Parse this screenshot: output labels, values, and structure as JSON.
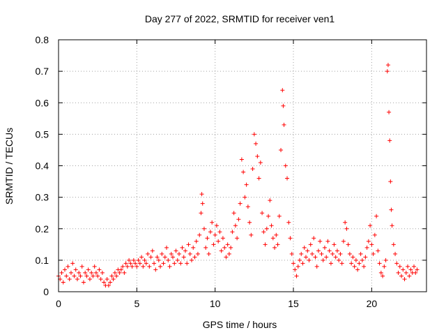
{
  "chart_data": {
    "type": "scatter",
    "title": "Day 277 of 2022, SRMTID for receiver ven1",
    "xlabel": "GPS time / hours",
    "ylabel": "SRMTID / TECUs",
    "xlim": [
      0,
      23.5
    ],
    "ylim": [
      0,
      0.8
    ],
    "xticks": [
      0,
      5,
      10,
      15,
      20
    ],
    "yticks": [
      0,
      0.1,
      0.2,
      0.3,
      0.4,
      0.5,
      0.6,
      0.7,
      0.8
    ],
    "xtick_labels": [
      "0",
      "5",
      "10",
      "15",
      "20"
    ],
    "ytick_labels": [
      "0",
      "0.1",
      "0.2",
      "0.3",
      "0.4",
      "0.5",
      "0.6",
      "0.7",
      "0.8"
    ],
    "grid": true,
    "marker": "+",
    "series": [
      {
        "name": "ven1",
        "color": "#ff0000",
        "points": [
          [
            0.0,
            0.05
          ],
          [
            0.1,
            0.04
          ],
          [
            0.2,
            0.06
          ],
          [
            0.3,
            0.03
          ],
          [
            0.4,
            0.07
          ],
          [
            0.5,
            0.05
          ],
          [
            0.6,
            0.08
          ],
          [
            0.7,
            0.04
          ],
          [
            0.8,
            0.06
          ],
          [
            0.9,
            0.09
          ],
          [
            1.0,
            0.05
          ],
          [
            1.1,
            0.07
          ],
          [
            1.2,
            0.04
          ],
          [
            1.3,
            0.06
          ],
          [
            1.4,
            0.05
          ],
          [
            1.5,
            0.08
          ],
          [
            1.6,
            0.03
          ],
          [
            1.7,
            0.06
          ],
          [
            1.8,
            0.05
          ],
          [
            1.9,
            0.07
          ],
          [
            2.0,
            0.04
          ],
          [
            2.1,
            0.06
          ],
          [
            2.2,
            0.05
          ],
          [
            2.3,
            0.08
          ],
          [
            2.4,
            0.06
          ],
          [
            2.5,
            0.05
          ],
          [
            2.6,
            0.07
          ],
          [
            2.7,
            0.04
          ],
          [
            2.8,
            0.06
          ],
          [
            2.9,
            0.03
          ],
          [
            3.0,
            0.02
          ],
          [
            3.1,
            0.04
          ],
          [
            3.2,
            0.02
          ],
          [
            3.3,
            0.03
          ],
          [
            3.4,
            0.05
          ],
          [
            3.5,
            0.04
          ],
          [
            3.6,
            0.06
          ],
          [
            3.7,
            0.05
          ],
          [
            3.8,
            0.07
          ],
          [
            3.9,
            0.06
          ],
          [
            4.0,
            0.07
          ],
          [
            4.1,
            0.08
          ],
          [
            4.2,
            0.06
          ],
          [
            4.3,
            0.09
          ],
          [
            4.4,
            0.08
          ],
          [
            4.5,
            0.1
          ],
          [
            4.6,
            0.09
          ],
          [
            4.7,
            0.08
          ],
          [
            4.8,
            0.1
          ],
          [
            4.9,
            0.09
          ],
          [
            5.0,
            0.08
          ],
          [
            5.1,
            0.1
          ],
          [
            5.2,
            0.09
          ],
          [
            5.3,
            0.11
          ],
          [
            5.4,
            0.08
          ],
          [
            5.5,
            0.1
          ],
          [
            5.6,
            0.09
          ],
          [
            5.7,
            0.12
          ],
          [
            5.8,
            0.08
          ],
          [
            5.9,
            0.11
          ],
          [
            6.0,
            0.13
          ],
          [
            6.1,
            0.09
          ],
          [
            6.2,
            0.07
          ],
          [
            6.3,
            0.11
          ],
          [
            6.4,
            0.1
          ],
          [
            6.5,
            0.08
          ],
          [
            6.6,
            0.12
          ],
          [
            6.7,
            0.09
          ],
          [
            6.8,
            0.11
          ],
          [
            6.9,
            0.14
          ],
          [
            7.0,
            0.1
          ],
          [
            7.1,
            0.08
          ],
          [
            7.2,
            0.12
          ],
          [
            7.3,
            0.11
          ],
          [
            7.4,
            0.09
          ],
          [
            7.5,
            0.13
          ],
          [
            7.6,
            0.1
          ],
          [
            7.7,
            0.12
          ],
          [
            7.8,
            0.09
          ],
          [
            7.9,
            0.14
          ],
          [
            8.0,
            0.11
          ],
          [
            8.1,
            0.13
          ],
          [
            8.2,
            0.09
          ],
          [
            8.3,
            0.15
          ],
          [
            8.4,
            0.12
          ],
          [
            8.5,
            0.1
          ],
          [
            8.6,
            0.14
          ],
          [
            8.7,
            0.11
          ],
          [
            8.8,
            0.16
          ],
          [
            8.9,
            0.12
          ],
          [
            9.0,
            0.18
          ],
          [
            9.1,
            0.25
          ],
          [
            9.15,
            0.31
          ],
          [
            9.2,
            0.28
          ],
          [
            9.3,
            0.2
          ],
          [
            9.4,
            0.14
          ],
          [
            9.5,
            0.17
          ],
          [
            9.6,
            0.12
          ],
          [
            9.7,
            0.19
          ],
          [
            9.8,
            0.22
          ],
          [
            9.9,
            0.15
          ],
          [
            10.0,
            0.18
          ],
          [
            10.1,
            0.21
          ],
          [
            10.2,
            0.16
          ],
          [
            10.3,
            0.19
          ],
          [
            10.4,
            0.13
          ],
          [
            10.5,
            0.17
          ],
          [
            10.6,
            0.14
          ],
          [
            10.7,
            0.11
          ],
          [
            10.8,
            0.15
          ],
          [
            10.9,
            0.12
          ],
          [
            11.0,
            0.14
          ],
          [
            11.1,
            0.19
          ],
          [
            11.2,
            0.25
          ],
          [
            11.3,
            0.21
          ],
          [
            11.4,
            0.17
          ],
          [
            11.5,
            0.23
          ],
          [
            11.6,
            0.28
          ],
          [
            11.7,
            0.42
          ],
          [
            11.8,
            0.38
          ],
          [
            11.9,
            0.3
          ],
          [
            12.0,
            0.34
          ],
          [
            12.1,
            0.27
          ],
          [
            12.2,
            0.22
          ],
          [
            12.3,
            0.18
          ],
          [
            12.4,
            0.39
          ],
          [
            12.5,
            0.5
          ],
          [
            12.6,
            0.47
          ],
          [
            12.7,
            0.43
          ],
          [
            12.8,
            0.36
          ],
          [
            12.9,
            0.41
          ],
          [
            13.0,
            0.25
          ],
          [
            13.1,
            0.19
          ],
          [
            13.2,
            0.15
          ],
          [
            13.3,
            0.2
          ],
          [
            13.4,
            0.24
          ],
          [
            13.5,
            0.29
          ],
          [
            13.6,
            0.21
          ],
          [
            13.7,
            0.17
          ],
          [
            13.8,
            0.14
          ],
          [
            13.9,
            0.18
          ],
          [
            14.0,
            0.15
          ],
          [
            14.1,
            0.24
          ],
          [
            14.2,
            0.45
          ],
          [
            14.3,
            0.64
          ],
          [
            14.35,
            0.59
          ],
          [
            14.4,
            0.53
          ],
          [
            14.5,
            0.4
          ],
          [
            14.6,
            0.36
          ],
          [
            14.7,
            0.22
          ],
          [
            14.8,
            0.17
          ],
          [
            14.9,
            0.12
          ],
          [
            15.0,
            0.09
          ],
          [
            15.1,
            0.07
          ],
          [
            15.2,
            0.05
          ],
          [
            15.3,
            0.08
          ],
          [
            15.4,
            0.1
          ],
          [
            15.5,
            0.12
          ],
          [
            15.6,
            0.09
          ],
          [
            15.7,
            0.14
          ],
          [
            15.8,
            0.11
          ],
          [
            15.9,
            0.13
          ],
          [
            16.0,
            0.1
          ],
          [
            16.1,
            0.15
          ],
          [
            16.2,
            0.12
          ],
          [
            16.3,
            0.17
          ],
          [
            16.4,
            0.11
          ],
          [
            16.5,
            0.08
          ],
          [
            16.6,
            0.13
          ],
          [
            16.7,
            0.16
          ],
          [
            16.8,
            0.12
          ],
          [
            16.9,
            0.1
          ],
          [
            17.0,
            0.14
          ],
          [
            17.1,
            0.11
          ],
          [
            17.2,
            0.16
          ],
          [
            17.3,
            0.13
          ],
          [
            17.4,
            0.09
          ],
          [
            17.5,
            0.12
          ],
          [
            17.6,
            0.15
          ],
          [
            17.7,
            0.11
          ],
          [
            17.8,
            0.13
          ],
          [
            17.9,
            0.1
          ],
          [
            18.0,
            0.12
          ],
          [
            18.1,
            0.09
          ],
          [
            18.2,
            0.16
          ],
          [
            18.3,
            0.22
          ],
          [
            18.4,
            0.2
          ],
          [
            18.5,
            0.15
          ],
          [
            18.6,
            0.12
          ],
          [
            18.7,
            0.09
          ],
          [
            18.8,
            0.11
          ],
          [
            18.9,
            0.08
          ],
          [
            19.0,
            0.1
          ],
          [
            19.1,
            0.07
          ],
          [
            19.2,
            0.09
          ],
          [
            19.3,
            0.12
          ],
          [
            19.4,
            0.1
          ],
          [
            19.5,
            0.08
          ],
          [
            19.6,
            0.11
          ],
          [
            19.7,
            0.14
          ],
          [
            19.8,
            0.16
          ],
          [
            19.9,
            0.21
          ],
          [
            20.0,
            0.15
          ],
          [
            20.1,
            0.12
          ],
          [
            20.2,
            0.18
          ],
          [
            20.3,
            0.24
          ],
          [
            20.4,
            0.13
          ],
          [
            20.5,
            0.09
          ],
          [
            20.6,
            0.06
          ],
          [
            20.7,
            0.05
          ],
          [
            20.8,
            0.08
          ],
          [
            20.9,
            0.1
          ],
          [
            21.0,
            0.7
          ],
          [
            21.05,
            0.72
          ],
          [
            21.1,
            0.57
          ],
          [
            21.15,
            0.48
          ],
          [
            21.2,
            0.35
          ],
          [
            21.25,
            0.26
          ],
          [
            21.3,
            0.21
          ],
          [
            21.4,
            0.15
          ],
          [
            21.5,
            0.12
          ],
          [
            21.6,
            0.09
          ],
          [
            21.7,
            0.06
          ],
          [
            21.8,
            0.08
          ],
          [
            21.9,
            0.05
          ],
          [
            22.0,
            0.07
          ],
          [
            22.1,
            0.04
          ],
          [
            22.2,
            0.06
          ],
          [
            22.3,
            0.08
          ],
          [
            22.4,
            0.05
          ],
          [
            22.5,
            0.07
          ],
          [
            22.6,
            0.06
          ],
          [
            22.7,
            0.08
          ],
          [
            22.8,
            0.06
          ],
          [
            22.9,
            0.07
          ]
        ]
      }
    ]
  }
}
